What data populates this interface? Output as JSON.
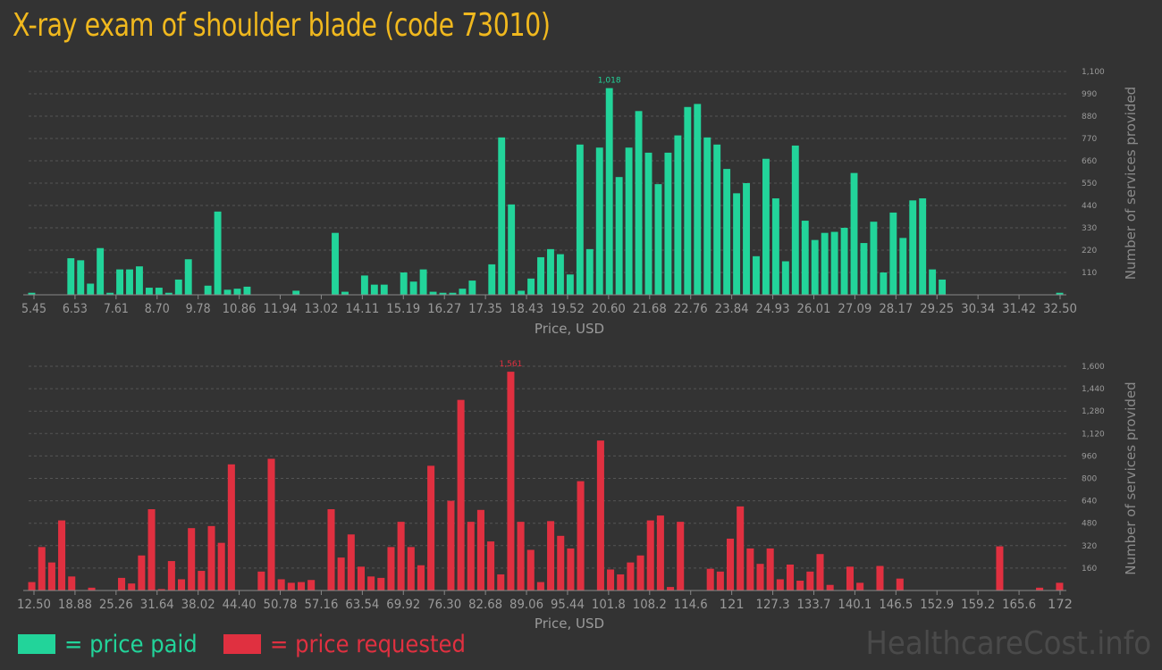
{
  "title": "X-ray exam of shoulder blade (code 73010)",
  "colors": {
    "paid": "#22d49a",
    "requested": "#e03040",
    "title": "#f0b81e"
  },
  "legend": {
    "paid_label": "= price paid",
    "requested_label": "= price requested"
  },
  "watermark": "HealthcareCost.info",
  "chart_data": [
    {
      "type": "bar",
      "series": [
        {
          "name": "price paid"
        }
      ],
      "xlabel": "Price, USD",
      "ylabel": "Number of services provided",
      "ylim": [
        0,
        1100
      ],
      "yticks": [
        110,
        220,
        330,
        440,
        550,
        660,
        770,
        880,
        990,
        1100
      ],
      "ytick_labels": [
        "110",
        "220",
        "330",
        "440",
        "550",
        "660",
        "770",
        "880",
        "990",
        "1,100"
      ],
      "x_tick_labels": [
        "5.45",
        "6.53",
        "7.61",
        "8.70",
        "9.78",
        "10.86",
        "11.94",
        "13.02",
        "14.11",
        "15.19",
        "16.27",
        "17.35",
        "18.43",
        "19.52",
        "20.60",
        "21.68",
        "22.76",
        "23.84",
        "24.93",
        "26.01",
        "27.09",
        "28.17",
        "29.25",
        "30.34",
        "31.42",
        "32.50"
      ],
      "peak_label": "1,018",
      "values": [
        10,
        0,
        0,
        0,
        180,
        170,
        55,
        230,
        10,
        125,
        125,
        140,
        35,
        35,
        10,
        75,
        175,
        0,
        45,
        410,
        25,
        30,
        40,
        0,
        0,
        0,
        0,
        20,
        0,
        0,
        0,
        305,
        15,
        0,
        95,
        50,
        50,
        0,
        110,
        65,
        125,
        15,
        10,
        10,
        30,
        70,
        0,
        150,
        775,
        445,
        20,
        80,
        185,
        225,
        200,
        100,
        740,
        225,
        725,
        1018,
        580,
        725,
        905,
        700,
        545,
        700,
        785,
        925,
        940,
        775,
        740,
        620,
        500,
        550,
        190,
        670,
        475,
        165,
        735,
        365,
        270,
        305,
        310,
        330,
        600,
        255,
        360,
        110,
        405,
        280,
        465,
        475,
        125,
        75,
        0,
        0,
        0,
        0,
        0,
        0,
        0,
        0,
        0,
        0,
        0,
        10
      ]
    },
    {
      "type": "bar",
      "series": [
        {
          "name": "price requested"
        }
      ],
      "xlabel": "Price, USD",
      "ylabel": "Number of services provided",
      "ylim": [
        0,
        1600
      ],
      "yticks": [
        160,
        320,
        480,
        640,
        800,
        960,
        1120,
        1280,
        1440,
        1600
      ],
      "ytick_labels": [
        "160",
        "320",
        "480",
        "640",
        "800",
        "960",
        "1,120",
        "1,280",
        "1,440",
        "1,600"
      ],
      "x_tick_labels": [
        "12.50",
        "18.88",
        "25.26",
        "31.64",
        "38.02",
        "44.40",
        "50.78",
        "57.16",
        "63.54",
        "69.92",
        "76.30",
        "82.68",
        "89.06",
        "95.44",
        "101.8",
        "108.2",
        "114.6",
        "121",
        "127.3",
        "133.7",
        "140.1",
        "146.5",
        "152.9",
        "159.2",
        "165.6",
        "172"
      ],
      "peak_label": "1,561",
      "values": [
        60,
        310,
        200,
        500,
        100,
        0,
        20,
        0,
        0,
        90,
        50,
        250,
        580,
        10,
        210,
        80,
        445,
        140,
        460,
        340,
        900,
        0,
        0,
        135,
        940,
        80,
        55,
        60,
        75,
        0,
        580,
        235,
        400,
        170,
        100,
        90,
        310,
        490,
        310,
        180,
        890,
        0,
        640,
        1360,
        490,
        575,
        350,
        115,
        1561,
        490,
        290,
        60,
        495,
        390,
        300,
        780,
        0,
        1070,
        150,
        115,
        200,
        250,
        500,
        535,
        25,
        490,
        0,
        0,
        155,
        135,
        370,
        600,
        300,
        190,
        300,
        80,
        185,
        70,
        135,
        260,
        40,
        0,
        170,
        55,
        0,
        175,
        0,
        85,
        0,
        0,
        0,
        0,
        0,
        0,
        0,
        0,
        0,
        315,
        0,
        0,
        0,
        20,
        0,
        55
      ]
    }
  ]
}
